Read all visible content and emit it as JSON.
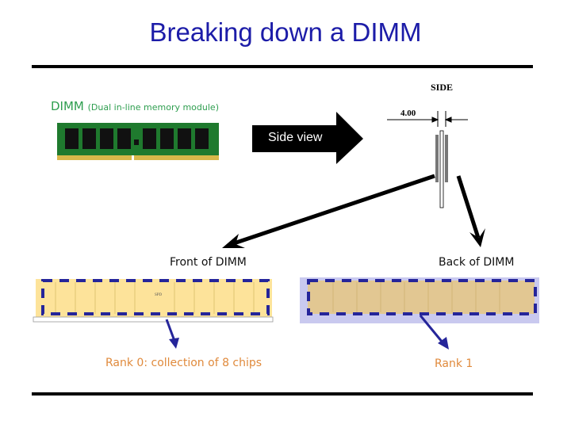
{
  "title": "Breaking down a DIMM",
  "dimm_label": {
    "main": "DIMM",
    "sub": "(Dual in-line memory module)"
  },
  "side_view_arrow": "Side view",
  "side_diagram": {
    "label": "SIDE",
    "dimension": "4.00"
  },
  "front_label": "Front of DIMM",
  "back_label": "Back of DIMM",
  "front_chip_label": "SPD",
  "rank0_label": "Rank 0: collection of 8 chips",
  "rank1_label": "Rank 1",
  "colors": {
    "title": "#1c1ca8",
    "dimm_label": "#2e9e4f",
    "rank_label": "#e08a3c",
    "rank_box": "#25259a",
    "front_module": "#fde39a",
    "back_module": "#e2c792"
  }
}
